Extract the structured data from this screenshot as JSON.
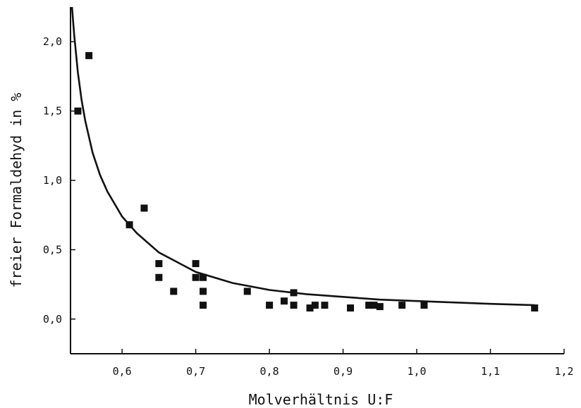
{
  "chart_data": {
    "type": "scatter",
    "xlabel": "Molverhältnis U:F",
    "ylabel": "freier Formaldehyd in %",
    "xlim": [
      0.53,
      1.2
    ],
    "ylim": [
      -0.25,
      2.25
    ],
    "x_ticks": [
      0.6,
      0.7,
      0.8,
      0.9,
      1.0,
      1.1,
      1.2
    ],
    "x_tick_labels": [
      "0,6",
      "0,7",
      "0,8",
      "0,9",
      "1,0",
      "1,1",
      "1,2"
    ],
    "y_ticks": [
      0.0,
      0.5,
      1.0,
      1.5,
      2.0
    ],
    "y_tick_labels": [
      "0,0",
      "0,5",
      "1,0",
      "1,5",
      "2,0"
    ],
    "grid": false,
    "points": [
      {
        "x": 0.54,
        "y": 1.5
      },
      {
        "x": 0.555,
        "y": 1.9
      },
      {
        "x": 0.61,
        "y": 0.68
      },
      {
        "x": 0.63,
        "y": 0.8
      },
      {
        "x": 0.65,
        "y": 0.4
      },
      {
        "x": 0.65,
        "y": 0.3
      },
      {
        "x": 0.67,
        "y": 0.2
      },
      {
        "x": 0.7,
        "y": 0.4
      },
      {
        "x": 0.7,
        "y": 0.3
      },
      {
        "x": 0.71,
        "y": 0.3
      },
      {
        "x": 0.71,
        "y": 0.2
      },
      {
        "x": 0.71,
        "y": 0.1
      },
      {
        "x": 0.77,
        "y": 0.2
      },
      {
        "x": 0.8,
        "y": 0.1
      },
      {
        "x": 0.82,
        "y": 0.13
      },
      {
        "x": 0.833,
        "y": 0.19
      },
      {
        "x": 0.833,
        "y": 0.1
      },
      {
        "x": 0.855,
        "y": 0.08
      },
      {
        "x": 0.862,
        "y": 0.1
      },
      {
        "x": 0.875,
        "y": 0.1
      },
      {
        "x": 0.91,
        "y": 0.08
      },
      {
        "x": 0.935,
        "y": 0.1
      },
      {
        "x": 0.942,
        "y": 0.1
      },
      {
        "x": 0.95,
        "y": 0.09
      },
      {
        "x": 0.98,
        "y": 0.1
      },
      {
        "x": 1.01,
        "y": 0.1
      },
      {
        "x": 1.16,
        "y": 0.08
      }
    ],
    "fit_curve": {
      "x": [
        0.532,
        0.535,
        0.54,
        0.545,
        0.55,
        0.56,
        0.57,
        0.58,
        0.6,
        0.62,
        0.65,
        0.7,
        0.75,
        0.8,
        0.85,
        0.9,
        0.95,
        1.0,
        1.05,
        1.1,
        1.16
      ],
      "y": [
        2.25,
        2.05,
        1.78,
        1.58,
        1.43,
        1.2,
        1.04,
        0.92,
        0.74,
        0.62,
        0.48,
        0.34,
        0.26,
        0.21,
        0.18,
        0.16,
        0.14,
        0.13,
        0.12,
        0.11,
        0.1
      ]
    }
  }
}
